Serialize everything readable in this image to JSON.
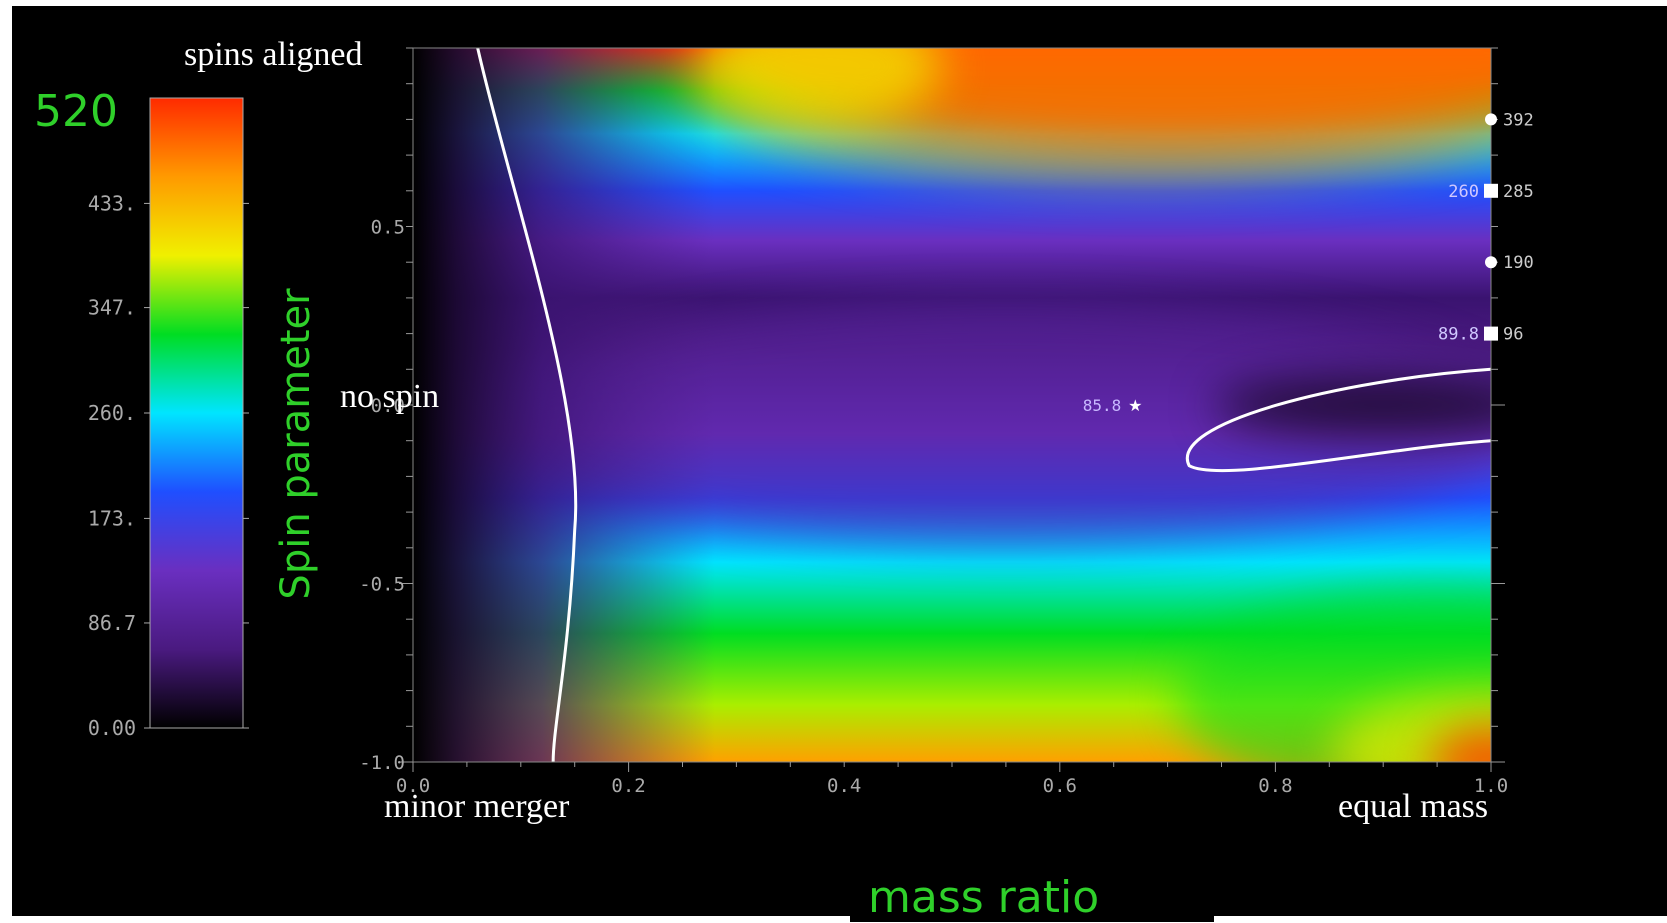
{
  "chart_data": {
    "type": "heatmap",
    "xlabel": "mass ratio",
    "ylabel": "Spin parameter",
    "xlim": [
      0.0,
      1.0
    ],
    "ylim": [
      -1.0,
      1.0
    ],
    "x_ticks": [
      "0.0",
      "0.2",
      "0.4",
      "0.6",
      "0.8",
      "1.0"
    ],
    "y_ticks": [
      "-1.0",
      "-0.5",
      "0.0",
      "0.5"
    ],
    "colorbar": {
      "min": 0,
      "max": 520,
      "max_label": "520",
      "tick_labels": [
        "0.00",
        "86.7",
        "173.",
        "260.",
        "347.",
        "433."
      ],
      "tick_values": [
        0,
        86.7,
        173,
        260,
        347,
        433
      ]
    },
    "annotations": {
      "top_left": "spins aligned",
      "middle_left": "no spin",
      "bottom_left": "minor merger",
      "bottom_right": "equal mass"
    },
    "points": [
      {
        "x": 0.67,
        "y": 0.0,
        "label": "85.8",
        "marker": "star"
      }
    ],
    "right_axis_markers": [
      {
        "y": 0.8,
        "value": "392",
        "marker": "circle",
        "note": ""
      },
      {
        "y": 0.6,
        "value": "285",
        "marker": "square",
        "note": "260"
      },
      {
        "y": 0.4,
        "value": "190",
        "marker": "circle",
        "note": ""
      },
      {
        "y": 0.2,
        "value": "96",
        "marker": "square",
        "note": "89.8"
      }
    ],
    "contour_label": "white contour lines at low-velocity level",
    "palette": [
      "#000000",
      "#4a1a80",
      "#6a2fc0",
      "#1f4fff",
      "#00e5ff",
      "#00dd22",
      "#f0f000",
      "#ff9a00",
      "#ff2a00"
    ]
  }
}
